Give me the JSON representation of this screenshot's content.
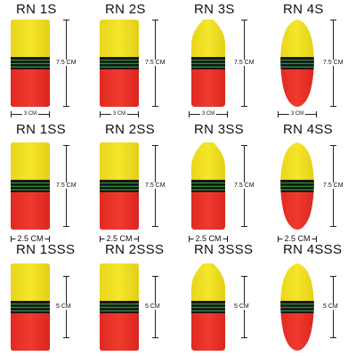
{
  "rows": [
    {
      "height_label": "7.5 CM",
      "width_label": "3 CM",
      "items": [
        {
          "name": "RN 1S",
          "shape": "rect"
        },
        {
          "name": "RN 2S",
          "shape": "rect"
        },
        {
          "name": "RN 3S",
          "shape": "bullet"
        },
        {
          "name": "RN 4S",
          "shape": "egg"
        }
      ]
    },
    {
      "height_label": "7.5 CM",
      "width_label": "2.5 CM",
      "items": [
        {
          "name": "RN 1SS",
          "shape": "rect"
        },
        {
          "name": "RN 2SS",
          "shape": "rect"
        },
        {
          "name": "RN 3SS",
          "shape": "bullet"
        },
        {
          "name": "RN 4SS",
          "shape": "egg"
        }
      ]
    },
    {
      "height_label": "5 CM",
      "width_label": "",
      "items": [
        {
          "name": "RN 1SSS",
          "shape": "rect"
        },
        {
          "name": "RN 2SSS",
          "shape": "rect"
        },
        {
          "name": "RN 3SSS",
          "shape": "bullet"
        },
        {
          "name": "RN 4SSS",
          "shape": "egg"
        }
      ]
    }
  ],
  "colors": {
    "yellow": "#f5e62a",
    "red": "#f03a2e",
    "stripe_black": "#111111",
    "stripe_green": "#2e8b3a"
  }
}
